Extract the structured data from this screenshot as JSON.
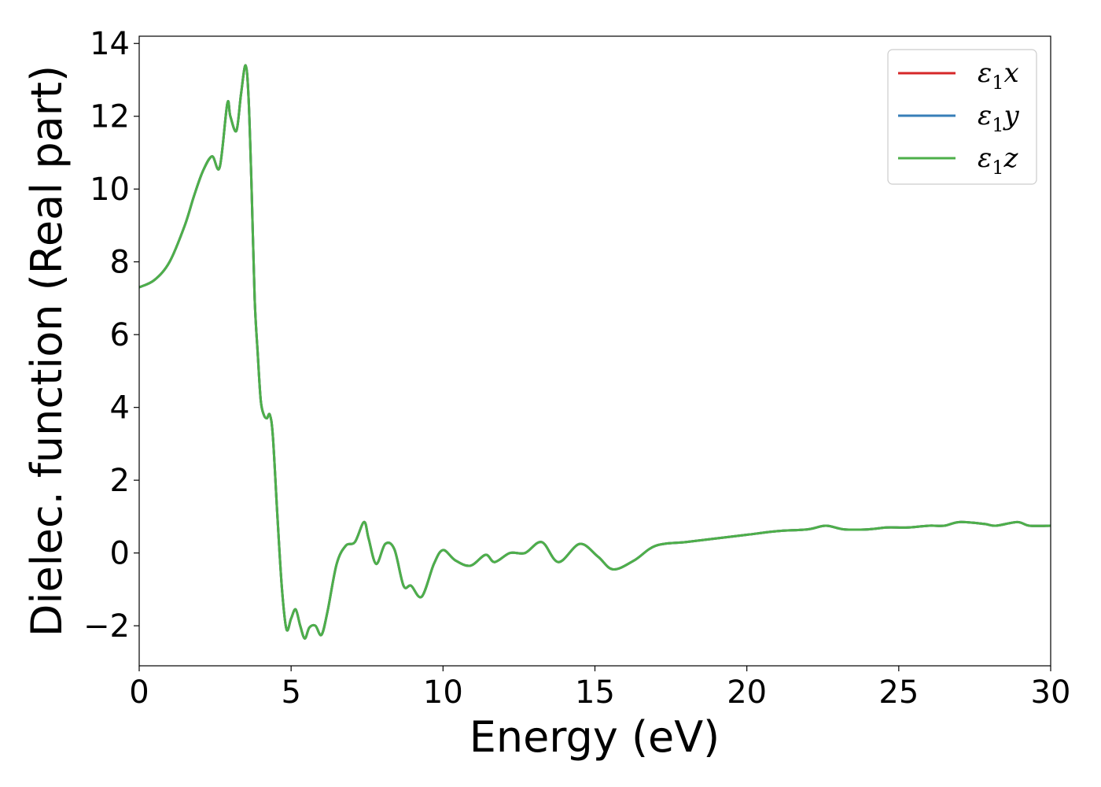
{
  "chart_data": {
    "type": "line",
    "xlabel": "Energy (eV)",
    "ylabel": "Dielec. function (Real part)",
    "xlim": [
      0,
      30
    ],
    "ylim": [
      -3.1,
      14.2
    ],
    "xticks": [
      0,
      5,
      10,
      15,
      20,
      25,
      30
    ],
    "xtick_labels": [
      "0",
      "5",
      "10",
      "15",
      "20",
      "25",
      "30"
    ],
    "yticks": [
      -2,
      0,
      2,
      4,
      6,
      8,
      10,
      12,
      14
    ],
    "ytick_labels": [
      "−2",
      "0",
      "2",
      "4",
      "6",
      "8",
      "10",
      "12",
      "14"
    ],
    "grid": false,
    "legend_position": "top-right",
    "series": [
      {
        "name": "ε₁x",
        "legend": {
          "base": "ε",
          "sub": "1",
          "suffix": "x"
        },
        "color": "#d62728",
        "x": [
          0,
          0.5,
          1.0,
          1.5,
          1.8,
          2.1,
          2.4,
          2.65,
          2.9,
          3.0,
          3.2,
          3.35,
          3.5,
          3.6,
          3.7,
          3.8,
          3.9,
          4.0,
          4.1,
          4.2,
          4.3,
          4.4,
          4.55,
          4.7,
          4.85,
          5.0,
          5.15,
          5.3,
          5.45,
          5.6,
          5.8,
          6.0,
          6.2,
          6.5,
          6.8,
          7.1,
          7.4,
          7.55,
          7.8,
          8.1,
          8.4,
          8.7,
          8.95,
          9.3,
          9.7,
          10.0,
          10.4,
          10.9,
          11.4,
          11.7,
          12.2,
          12.7,
          13.25,
          13.8,
          14.5,
          15.1,
          15.6,
          16.3,
          17.0,
          18.0,
          19.0,
          20.0,
          21.0,
          22.0,
          22.6,
          23.2,
          24.0,
          24.6,
          25.3,
          26.0,
          26.5,
          27.0,
          27.8,
          28.2,
          28.9,
          29.3,
          30.0
        ],
        "y": [
          7.3,
          7.5,
          8.0,
          9.0,
          9.8,
          10.5,
          10.9,
          10.6,
          12.35,
          12.0,
          11.6,
          12.6,
          13.4,
          12.5,
          10.0,
          7.0,
          5.5,
          4.2,
          3.8,
          3.7,
          3.8,
          3.2,
          1.0,
          -1.0,
          -2.1,
          -1.8,
          -1.55,
          -2.0,
          -2.35,
          -2.05,
          -2.0,
          -2.25,
          -1.6,
          -0.3,
          0.2,
          0.3,
          0.85,
          0.4,
          -0.3,
          0.25,
          0.1,
          -0.9,
          -0.9,
          -1.2,
          -0.3,
          0.08,
          -0.2,
          -0.35,
          -0.05,
          -0.25,
          0.0,
          0.0,
          0.3,
          -0.25,
          0.25,
          -0.1,
          -0.45,
          -0.2,
          0.2,
          0.3,
          0.4,
          0.5,
          0.6,
          0.65,
          0.75,
          0.65,
          0.65,
          0.7,
          0.7,
          0.75,
          0.75,
          0.85,
          0.8,
          0.75,
          0.85,
          0.75,
          0.75
        ]
      },
      {
        "name": "ε₁y",
        "legend": {
          "base": "ε",
          "sub": "1",
          "suffix": "y"
        },
        "color": "#377eb8",
        "x": [
          0,
          0.5,
          1.0,
          1.5,
          1.8,
          2.1,
          2.4,
          2.65,
          2.9,
          3.0,
          3.2,
          3.35,
          3.5,
          3.6,
          3.7,
          3.8,
          3.9,
          4.0,
          4.1,
          4.2,
          4.3,
          4.4,
          4.55,
          4.7,
          4.85,
          5.0,
          5.15,
          5.3,
          5.45,
          5.6,
          5.8,
          6.0,
          6.2,
          6.5,
          6.8,
          7.1,
          7.4,
          7.55,
          7.8,
          8.1,
          8.4,
          8.7,
          8.95,
          9.3,
          9.7,
          10.0,
          10.4,
          10.9,
          11.4,
          11.7,
          12.2,
          12.7,
          13.25,
          13.8,
          14.5,
          15.1,
          15.6,
          16.3,
          17.0,
          18.0,
          19.0,
          20.0,
          21.0,
          22.0,
          22.6,
          23.2,
          24.0,
          24.6,
          25.3,
          26.0,
          26.5,
          27.0,
          27.8,
          28.2,
          28.9,
          29.3,
          30.0
        ],
        "y": [
          7.3,
          7.5,
          8.0,
          9.0,
          9.8,
          10.5,
          10.9,
          10.6,
          12.35,
          12.0,
          11.6,
          12.6,
          13.4,
          12.5,
          10.0,
          7.0,
          5.5,
          4.2,
          3.8,
          3.7,
          3.8,
          3.2,
          1.0,
          -1.0,
          -2.1,
          -1.8,
          -1.55,
          -2.0,
          -2.35,
          -2.05,
          -2.0,
          -2.25,
          -1.6,
          -0.3,
          0.2,
          0.3,
          0.85,
          0.4,
          -0.3,
          0.25,
          0.1,
          -0.9,
          -0.9,
          -1.2,
          -0.3,
          0.08,
          -0.2,
          -0.35,
          -0.05,
          -0.25,
          0.0,
          0.0,
          0.3,
          -0.25,
          0.25,
          -0.1,
          -0.45,
          -0.2,
          0.2,
          0.3,
          0.4,
          0.5,
          0.6,
          0.65,
          0.75,
          0.65,
          0.65,
          0.7,
          0.7,
          0.75,
          0.75,
          0.85,
          0.8,
          0.75,
          0.85,
          0.75,
          0.75
        ]
      },
      {
        "name": "ε₁z",
        "legend": {
          "base": "ε",
          "sub": "1",
          "suffix": "z"
        },
        "color": "#4daf4a",
        "x": [
          0,
          0.5,
          1.0,
          1.5,
          1.8,
          2.1,
          2.4,
          2.65,
          2.9,
          3.0,
          3.2,
          3.35,
          3.5,
          3.6,
          3.7,
          3.8,
          3.9,
          4.0,
          4.1,
          4.2,
          4.3,
          4.4,
          4.55,
          4.7,
          4.85,
          5.0,
          5.15,
          5.3,
          5.45,
          5.6,
          5.8,
          6.0,
          6.2,
          6.5,
          6.8,
          7.1,
          7.4,
          7.55,
          7.8,
          8.1,
          8.4,
          8.7,
          8.95,
          9.3,
          9.7,
          10.0,
          10.4,
          10.9,
          11.4,
          11.7,
          12.2,
          12.7,
          13.25,
          13.8,
          14.5,
          15.1,
          15.6,
          16.3,
          17.0,
          18.0,
          19.0,
          20.0,
          21.0,
          22.0,
          22.6,
          23.2,
          24.0,
          24.6,
          25.3,
          26.0,
          26.5,
          27.0,
          27.8,
          28.2,
          28.9,
          29.3,
          30.0
        ],
        "y": [
          7.3,
          7.5,
          8.0,
          9.0,
          9.8,
          10.5,
          10.9,
          10.6,
          12.35,
          12.0,
          11.6,
          12.6,
          13.4,
          12.5,
          10.0,
          7.0,
          5.5,
          4.2,
          3.8,
          3.7,
          3.8,
          3.2,
          1.0,
          -1.0,
          -2.1,
          -1.8,
          -1.55,
          -2.0,
          -2.35,
          -2.05,
          -2.0,
          -2.25,
          -1.6,
          -0.3,
          0.2,
          0.3,
          0.85,
          0.4,
          -0.3,
          0.25,
          0.1,
          -0.9,
          -0.9,
          -1.2,
          -0.3,
          0.08,
          -0.2,
          -0.35,
          -0.05,
          -0.25,
          0.0,
          0.0,
          0.3,
          -0.25,
          0.25,
          -0.1,
          -0.45,
          -0.2,
          0.2,
          0.3,
          0.4,
          0.5,
          0.6,
          0.65,
          0.75,
          0.65,
          0.65,
          0.7,
          0.7,
          0.75,
          0.75,
          0.85,
          0.8,
          0.75,
          0.85,
          0.75,
          0.75
        ]
      }
    ]
  }
}
